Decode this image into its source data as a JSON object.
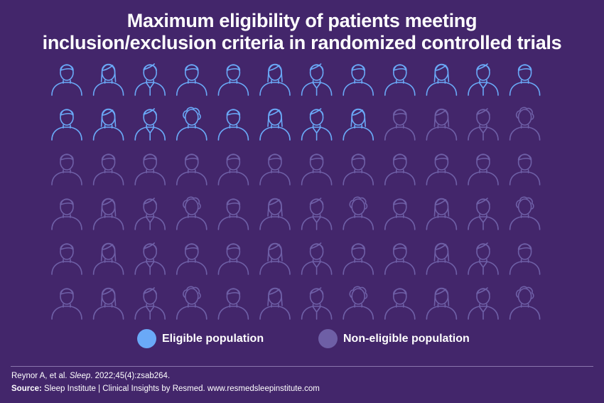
{
  "title": {
    "line1": "Maximum eligibility of patients meeting",
    "line2": "inclusion/exclusion criteria in randomized controlled trials"
  },
  "chart_data": {
    "type": "pictogram",
    "unit": "patient icon",
    "total": 72,
    "rows": 6,
    "columns": 12,
    "series": [
      {
        "name": "Eligible population",
        "value": 20,
        "color": "#6aa9f7"
      },
      {
        "name": "Non-eligible population",
        "value": 52,
        "color": "#6e5fa6"
      }
    ]
  },
  "legend": {
    "position": "bottom",
    "eligible_label": "Eligible population",
    "noneligible_label": "Non-eligible population"
  },
  "colors": {
    "background": "#43266b",
    "eligible": "#6aa9f7",
    "noneligible": "#6e5fa6",
    "text": "#ffffff"
  },
  "footer": {
    "citation_prefix": "Reynor A, et al. ",
    "citation_journal": "Sleep",
    "citation_suffix": ". 2022;45(4):zsab264.",
    "source_label": "Source:",
    "source_text": " Sleep Institute | Clinical Insights by Resmed. www.resmedsleepinstitute.com"
  }
}
